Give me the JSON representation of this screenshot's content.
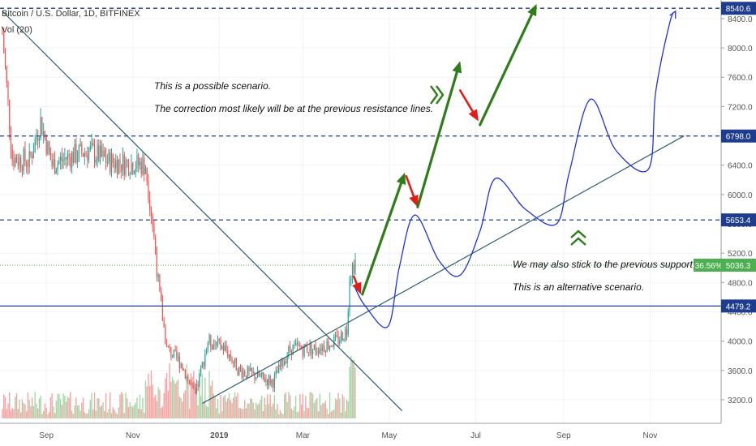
{
  "header": {
    "symbol_line": "Bitcoin / U.S. Dollar, 1D, BITFINEX",
    "volume_line": "Vol (20)"
  },
  "annotations": {
    "top_line1": "This is a possible scenario.",
    "top_line2": "The correction most likely will be at the previous resistance lines.",
    "bottom_line1": "We may also stick to the previous support line.",
    "bottom_line2": "This is an alternative scenario."
  },
  "colors": {
    "up": "#26a69a",
    "down": "#ef5350",
    "up_vol": "#a5d6a7",
    "down_vol": "#f4a4a2",
    "level_line": "#1e3d8f",
    "trend_line": "#2f5f6f",
    "arrow_green": "#2e7d1a",
    "arrow_red": "#e41b17",
    "scenario_curve": "#2233dd",
    "current_price": "#4caf50"
  },
  "chart_data": {
    "type": "candlestick",
    "title": "Bitcoin / U.S. Dollar, 1D, BITFINEX",
    "x_ticks": [
      "Sep",
      "Nov",
      "2019",
      "Mar",
      "May",
      "Jul",
      "Sep",
      "Nov"
    ],
    "y_ticks": [
      "3200.0",
      "3600.0",
      "4000.0",
      "4400.0",
      "4800.0",
      "5200.0",
      "5600.0",
      "6000.0",
      "6400.0",
      "6800.0",
      "7200.0",
      "7600.0",
      "8000.0",
      "8400.0"
    ],
    "ylim": [
      2950,
      8600
    ],
    "price_levels": [
      {
        "label": "8540.6",
        "value": 8540.6,
        "style": "dashed"
      },
      {
        "label": "6798.0",
        "value": 6798.0,
        "style": "dashed"
      },
      {
        "label": "5653.4",
        "value": 5653.4,
        "style": "dashed"
      },
      {
        "label": "4479.2",
        "value": 4479.2,
        "style": "solid"
      }
    ],
    "current_price": {
      "label": "5036.3",
      "value": 5036.3,
      "change": "-36.56%"
    },
    "anchors": [
      {
        "date": "2018-08-01",
        "close": 8200
      },
      {
        "date": "2018-08-08",
        "close": 6500
      },
      {
        "date": "2018-08-20",
        "close": 6450
      },
      {
        "date": "2018-08-28",
        "close": 7000
      },
      {
        "date": "2018-09-05",
        "close": 6400
      },
      {
        "date": "2018-09-15",
        "close": 6500
      },
      {
        "date": "2018-10-01",
        "close": 6600
      },
      {
        "date": "2018-10-15",
        "close": 6450
      },
      {
        "date": "2018-11-10",
        "close": 6400
      },
      {
        "date": "2018-11-15",
        "close": 5600
      },
      {
        "date": "2018-11-20",
        "close": 4600
      },
      {
        "date": "2018-11-25",
        "close": 3900
      },
      {
        "date": "2018-12-05",
        "close": 3700
      },
      {
        "date": "2018-12-15",
        "close": 3250
      },
      {
        "date": "2018-12-24",
        "close": 4000
      },
      {
        "date": "2019-01-05",
        "close": 3900
      },
      {
        "date": "2019-01-15",
        "close": 3600
      },
      {
        "date": "2019-02-08",
        "close": 3450
      },
      {
        "date": "2019-02-20",
        "close": 3900
      },
      {
        "date": "2019-03-10",
        "close": 3900
      },
      {
        "date": "2019-03-25",
        "close": 4000
      },
      {
        "date": "2019-04-01",
        "close": 4150
      },
      {
        "date": "2019-04-03",
        "close": 4900
      },
      {
        "date": "2019-04-07",
        "close": 5100
      }
    ],
    "resistance_trendline": [
      {
        "date": "2018-08-01",
        "value": 8500
      },
      {
        "date": "2019-05-10",
        "value": 3050
      }
    ],
    "support_trendline": [
      {
        "date": "2018-12-20",
        "value": 3150
      },
      {
        "date": "2019-11-25",
        "value": 6800
      }
    ],
    "scenario_primary_arrows": [
      {
        "color": "red",
        "from": {
          "date": "2019-04-06",
          "value": 4880
        },
        "to": {
          "date": "2019-04-11",
          "value": 4640
        }
      },
      {
        "color": "green",
        "from": {
          "date": "2019-04-12",
          "value": 4640
        },
        "to": {
          "date": "2019-05-12",
          "value": 6300
        }
      },
      {
        "color": "red",
        "from": {
          "date": "2019-05-13",
          "value": 6250
        },
        "to": {
          "date": "2019-05-21",
          "value": 5830
        }
      },
      {
        "color": "green",
        "from": {
          "date": "2019-05-21",
          "value": 5830
        },
        "to": {
          "date": "2019-06-20",
          "value": 7820
        }
      },
      {
        "color": "red",
        "from": {
          "date": "2019-06-20",
          "value": 7420
        },
        "to": {
          "date": "2019-07-03",
          "value": 7000
        }
      },
      {
        "color": "green",
        "from": {
          "date": "2019-07-04",
          "value": 6950
        },
        "to": {
          "date": "2019-08-13",
          "value": 8600
        }
      }
    ],
    "scenario_alternative_curve": [
      {
        "date": "2019-04-07",
        "value": 4720
      },
      {
        "date": "2019-04-14",
        "value": 4480
      },
      {
        "date": "2019-04-30",
        "value": 4200
      },
      {
        "date": "2019-05-08",
        "value": 5000
      },
      {
        "date": "2019-05-19",
        "value": 5720
      },
      {
        "date": "2019-06-05",
        "value": 5100
      },
      {
        "date": "2019-06-20",
        "value": 4900
      },
      {
        "date": "2019-07-04",
        "value": 5500
      },
      {
        "date": "2019-07-15",
        "value": 6220
      },
      {
        "date": "2019-08-05",
        "value": 5800
      },
      {
        "date": "2019-08-27",
        "value": 5600
      },
      {
        "date": "2019-09-05",
        "value": 6300
      },
      {
        "date": "2019-09-20",
        "value": 7300
      },
      {
        "date": "2019-10-08",
        "value": 6600
      },
      {
        "date": "2019-10-31",
        "value": 6350
      },
      {
        "date": "2019-11-05",
        "value": 7400
      },
      {
        "date": "2019-11-15",
        "value": 8350
      },
      {
        "date": "2019-11-19",
        "value": 8500
      }
    ]
  }
}
